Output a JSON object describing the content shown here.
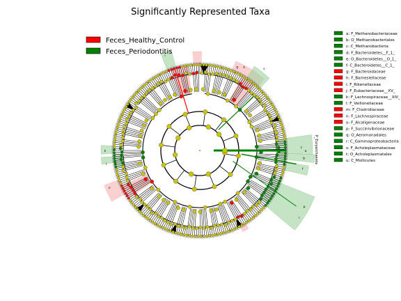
{
  "chart_data": {
    "type": "cladogram",
    "title": "Significantly Represented Taxa",
    "groups": [
      {
        "name": "Feces_Healthy_Control",
        "color": "#ff0000"
      },
      {
        "name": "Feces_Periodontitis",
        "color": "#008000"
      }
    ],
    "node_color": "#c8c400",
    "taxa": [
      {
        "key": "a",
        "label": "a: F_Methanobacteriaceae",
        "group": "Feces_Periodontitis"
      },
      {
        "key": "b",
        "label": "b: O_Methanobacteriales",
        "group": "Feces_Periodontitis"
      },
      {
        "key": "c",
        "label": "c: C_Methanobacteria",
        "group": "Feces_Periodontitis"
      },
      {
        "key": "d",
        "label": "d: F_Bacteroidetes__F_1_",
        "group": "Feces_Periodontitis"
      },
      {
        "key": "e",
        "label": "e: O_Bacteroidetes__O_1_",
        "group": "Feces_Periodontitis"
      },
      {
        "key": "f",
        "label": "f: C_Bacteroidetes__C_1_",
        "group": "Feces_Periodontitis"
      },
      {
        "key": "g",
        "label": "g: F_Bacteroidaceae",
        "group": "Feces_Healthy_Control"
      },
      {
        "key": "h",
        "label": "h: F_Barnesiellaceae",
        "group": "Feces_Healthy_Control"
      },
      {
        "key": "i",
        "label": "i: F_Rikenellaceae",
        "group": "Feces_Healthy_Control"
      },
      {
        "key": "j",
        "label": "j: F_Eubacteriaceae__XV_",
        "group": "Feces_Healthy_Control"
      },
      {
        "key": "k",
        "label": "k: F_Lachnospiraceae__XIV_",
        "group": "Feces_Periodontitis"
      },
      {
        "key": "l",
        "label": "l: F_Veillonellaceae",
        "group": "Feces_Periodontitis"
      },
      {
        "key": "m",
        "label": "m: F_Clostridiaceae",
        "group": "Feces_Healthy_Control"
      },
      {
        "key": "n",
        "label": "n: F_Lachnospiraceae",
        "group": "Feces_Healthy_Control"
      },
      {
        "key": "o",
        "label": "o: F_Alcaligenaceae",
        "group": "Feces_Healthy_Control"
      },
      {
        "key": "p",
        "label": "p: F_Succinivibrionaceae",
        "group": "Feces_Periodontitis"
      },
      {
        "key": "q",
        "label": "q: O_Aeromonadales",
        "group": "Feces_Periodontitis"
      },
      {
        "key": "r",
        "label": "r: C_Gammaproteobacteria",
        "group": "Feces_Periodontitis"
      },
      {
        "key": "s",
        "label": "s: F_Acholeplasmataceae",
        "group": "Feces_Periodontitis"
      },
      {
        "key": "t",
        "label": "t: O_Acholeplasmatales",
        "group": "Feces_Periodontitis"
      },
      {
        "key": "u",
        "label": "u: C_Mollicutes",
        "group": "Feces_Periodontitis"
      }
    ],
    "phylum_label": "P_Euryarchaeota"
  }
}
